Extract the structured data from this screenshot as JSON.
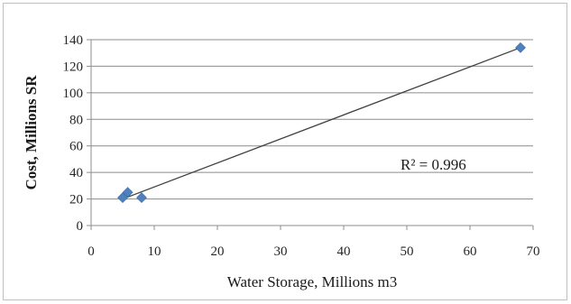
{
  "chart_data": {
    "type": "scatter",
    "xlabel": "Water Storage, Millions m3",
    "ylabel": "Cost, Millions SR",
    "xlim": [
      0,
      70
    ],
    "ylim": [
      0,
      140
    ],
    "x_ticks": [
      0,
      10,
      20,
      30,
      40,
      50,
      60,
      70
    ],
    "y_ticks": [
      0,
      20,
      40,
      60,
      80,
      100,
      120,
      140
    ],
    "grid": {
      "horizontal": true,
      "vertical": false
    },
    "legend": "none",
    "series": [
      {
        "marker": "diamond",
        "color": "#4f81bd",
        "points": [
          {
            "x": 5.0,
            "y": 21
          },
          {
            "x": 5.8,
            "y": 25
          },
          {
            "x": 8.0,
            "y": 21
          },
          {
            "x": 68.0,
            "y": 134
          }
        ]
      }
    ],
    "trendline": {
      "type": "linear",
      "from": {
        "x": 5.0,
        "y": 20
      },
      "to": {
        "x": 68.0,
        "y": 134
      },
      "color": "#404040"
    },
    "annotations": [
      {
        "text": "R² = 0.996",
        "x": 55,
        "y": 45
      }
    ]
  }
}
